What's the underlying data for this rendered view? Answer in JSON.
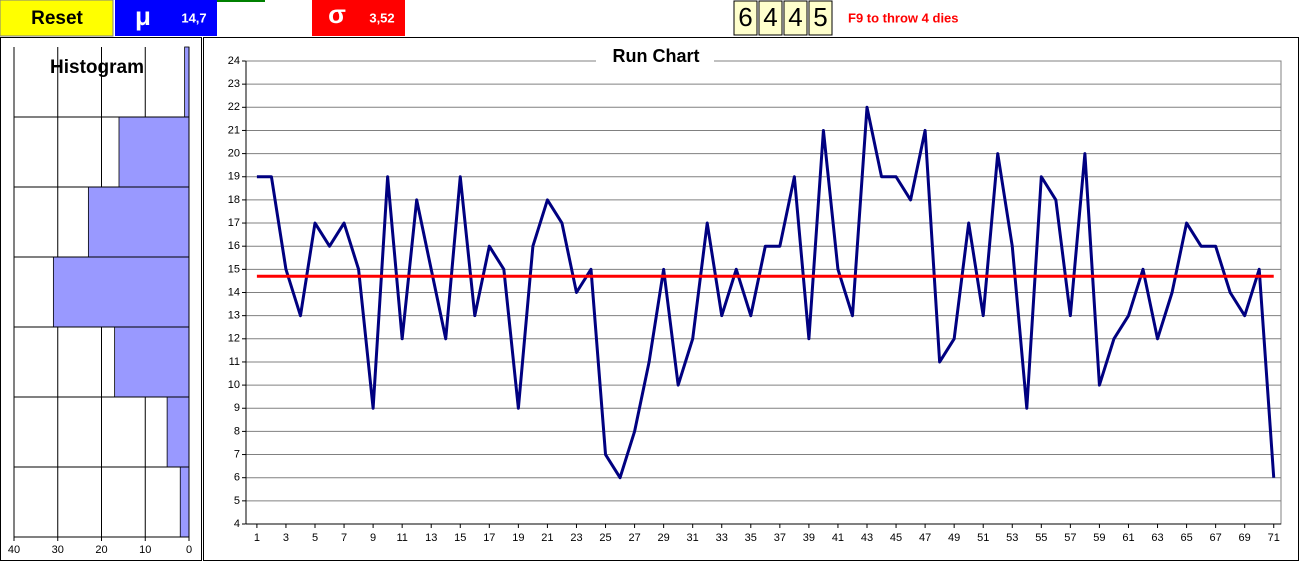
{
  "toolbar": {
    "reset": "Reset",
    "mean": {
      "symbol": "μ",
      "value": "14,7"
    },
    "sd": {
      "symbol": "σ",
      "value": "3,52"
    },
    "dice": [
      "6",
      "4",
      "4",
      "5"
    ],
    "hint": "F9 to throw 4 dies"
  },
  "chart_data": [
    {
      "type": "bar",
      "orientation": "horizontal",
      "title": "Histogram",
      "categories": [
        null,
        null,
        null,
        null,
        null,
        null,
        null
      ],
      "values": [
        1,
        16,
        23,
        31,
        17,
        5,
        2
      ],
      "color": "#9999ff",
      "xlim": [
        40,
        0
      ],
      "xticks": [
        40,
        30,
        20,
        10,
        0
      ],
      "grid": true
    },
    {
      "type": "line",
      "title": "Run Chart",
      "x": [
        1,
        2,
        3,
        4,
        5,
        6,
        7,
        8,
        9,
        10,
        11,
        12,
        13,
        14,
        15,
        16,
        17,
        18,
        19,
        20,
        21,
        22,
        23,
        24,
        25,
        26,
        27,
        28,
        29,
        30,
        31,
        32,
        33,
        34,
        35,
        36,
        37,
        38,
        39,
        40,
        41,
        42,
        43,
        44,
        45,
        46,
        47,
        48,
        49,
        50,
        51,
        52,
        53,
        54,
        55,
        56,
        57,
        58,
        59,
        60,
        61,
        62,
        63,
        64,
        65,
        66,
        67,
        68,
        69,
        70,
        71
      ],
      "values": [
        19,
        19,
        15,
        13,
        17,
        16,
        17,
        15,
        9,
        19,
        12,
        18,
        15,
        12,
        19,
        13,
        16,
        15,
        9,
        16,
        18,
        17,
        14,
        15,
        7,
        6,
        8,
        11,
        15,
        10,
        12,
        17,
        13,
        15,
        13,
        16,
        16,
        19,
        12,
        21,
        15,
        13,
        22,
        19,
        19,
        18,
        21,
        11,
        12,
        17,
        13,
        20,
        16,
        9,
        19,
        18,
        13,
        20,
        10,
        12,
        13,
        15,
        12,
        14,
        17,
        16,
        16,
        14,
        13,
        15,
        6
      ],
      "color": "#000080",
      "reference_line": {
        "value": 14.7,
        "color": "#ff0000"
      },
      "xlim": [
        0.25,
        71.5
      ],
      "xticks": [
        1,
        3,
        5,
        7,
        9,
        11,
        13,
        15,
        17,
        19,
        21,
        23,
        25,
        27,
        29,
        31,
        33,
        35,
        37,
        39,
        41,
        43,
        45,
        47,
        49,
        51,
        53,
        55,
        57,
        59,
        61,
        63,
        65,
        67,
        69,
        71
      ],
      "ylim": [
        4,
        24
      ],
      "yticks": [
        4,
        5,
        6,
        7,
        8,
        9,
        10,
        11,
        12,
        13,
        14,
        15,
        16,
        17,
        18,
        19,
        20,
        21,
        22,
        23,
        24
      ],
      "grid": true
    }
  ]
}
